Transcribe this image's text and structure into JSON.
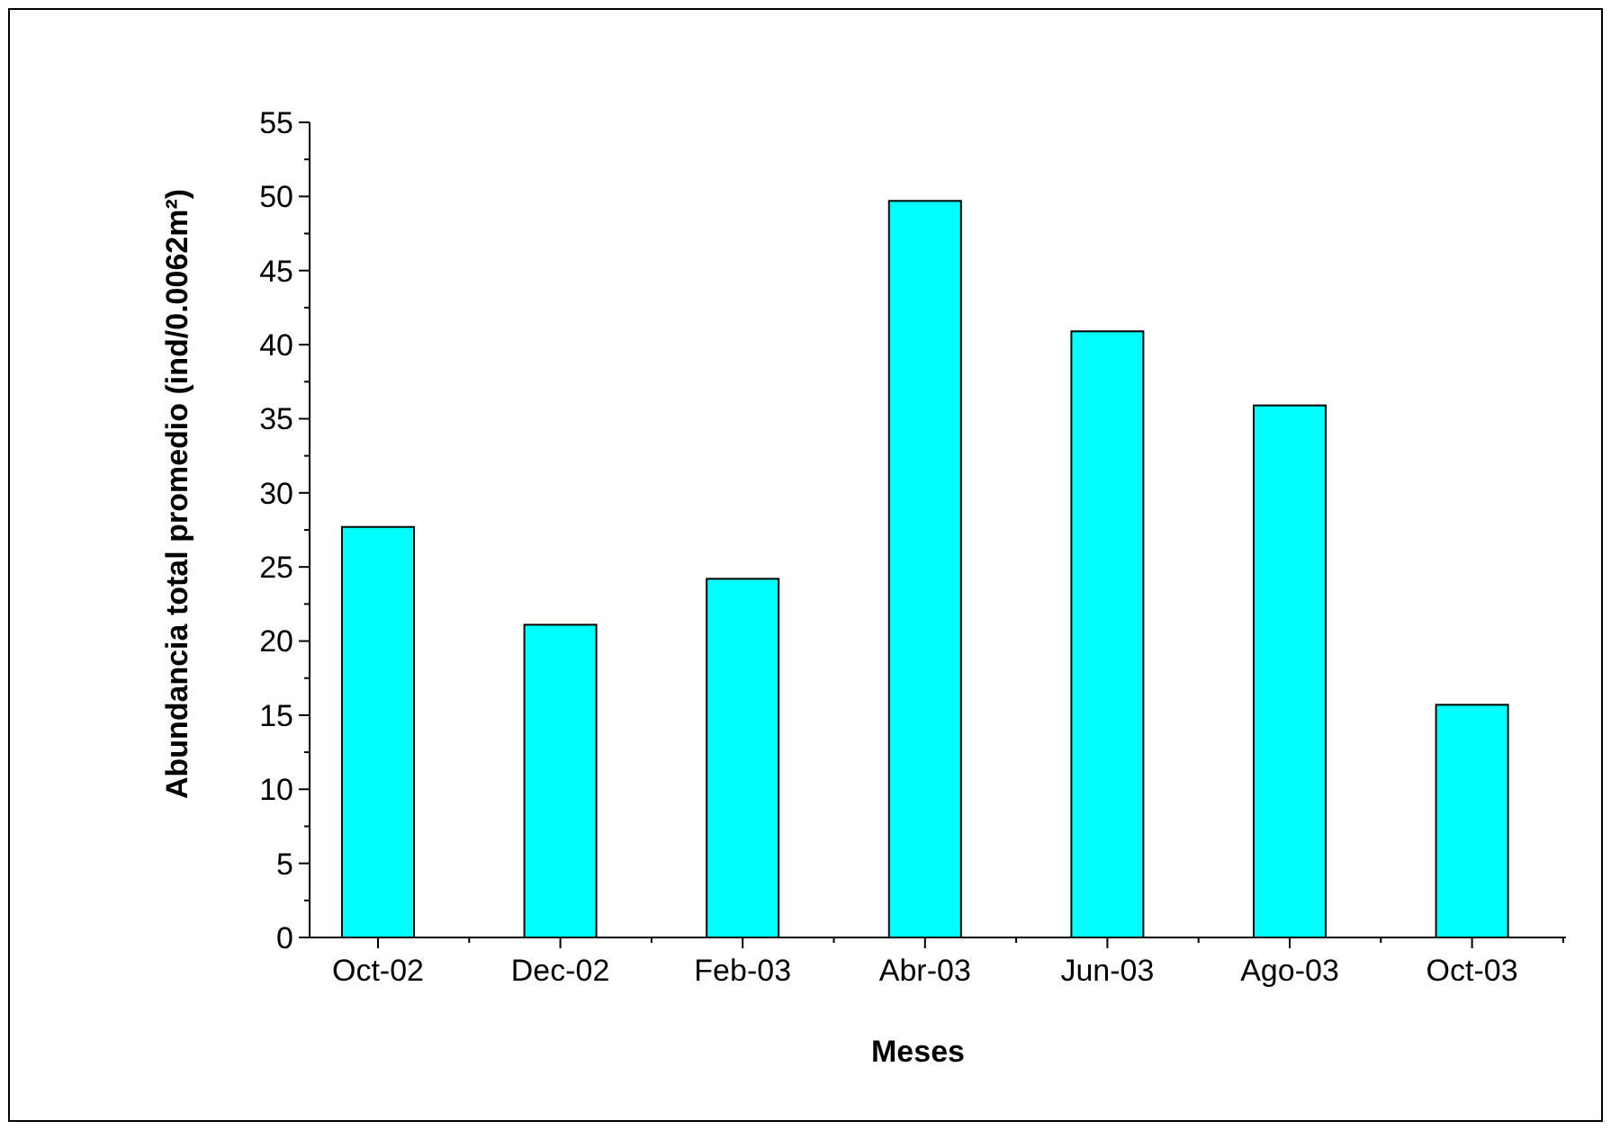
{
  "chart_data": {
    "type": "bar",
    "xlabel": "Meses",
    "ylabel": "Abundancia total promedio (ind/0.0062m²)",
    "categories": [
      "Oct-02",
      "Dec-02",
      "Feb-03",
      "Abr-03",
      "Jun-03",
      "Ago-03",
      "Oct-03"
    ],
    "values": [
      27.7,
      21.1,
      24.2,
      49.7,
      40.9,
      35.9,
      15.7
    ],
    "color": "#00ffff",
    "ylim": [
      0,
      55
    ],
    "yticks": [
      0,
      5,
      10,
      15,
      20,
      25,
      30,
      35,
      40,
      45,
      50,
      55
    ],
    "grid": false
  }
}
